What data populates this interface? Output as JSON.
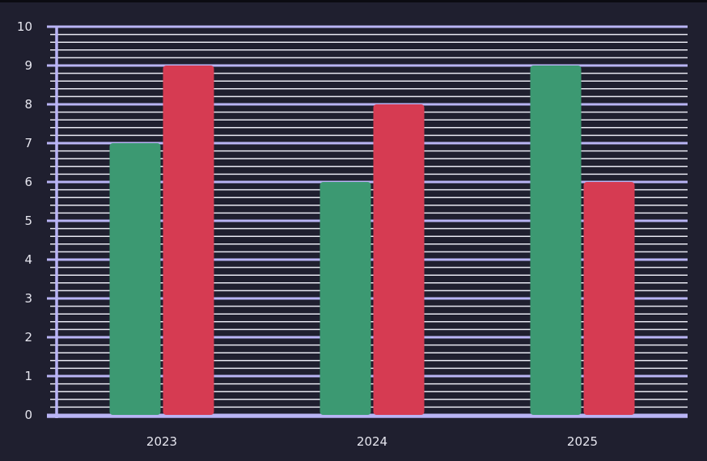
{
  "chart_data": {
    "type": "bar",
    "categories": [
      "2023",
      "2024",
      "2025"
    ],
    "series": [
      {
        "values": [
          7,
          6,
          9
        ],
        "color": "#3c9972"
      },
      {
        "values": [
          9,
          8,
          6
        ],
        "color": "#d63b52"
      }
    ],
    "title": "",
    "xlabel": "",
    "ylabel": "",
    "ylim": [
      0,
      10
    ],
    "yticks": [
      "0",
      "1",
      "2",
      "3",
      "4",
      "5",
      "6",
      "7",
      "8",
      "9",
      "10"
    ],
    "minor_ticks_per_major": 5,
    "grid": true,
    "legend": "none",
    "colors": {
      "background": "#1f1f2f",
      "grid_major": "#b9b4f5",
      "grid_minor": "#e8e8f2",
      "axis": "#b9b4f5",
      "tick_label": "#e6e6ef"
    }
  }
}
